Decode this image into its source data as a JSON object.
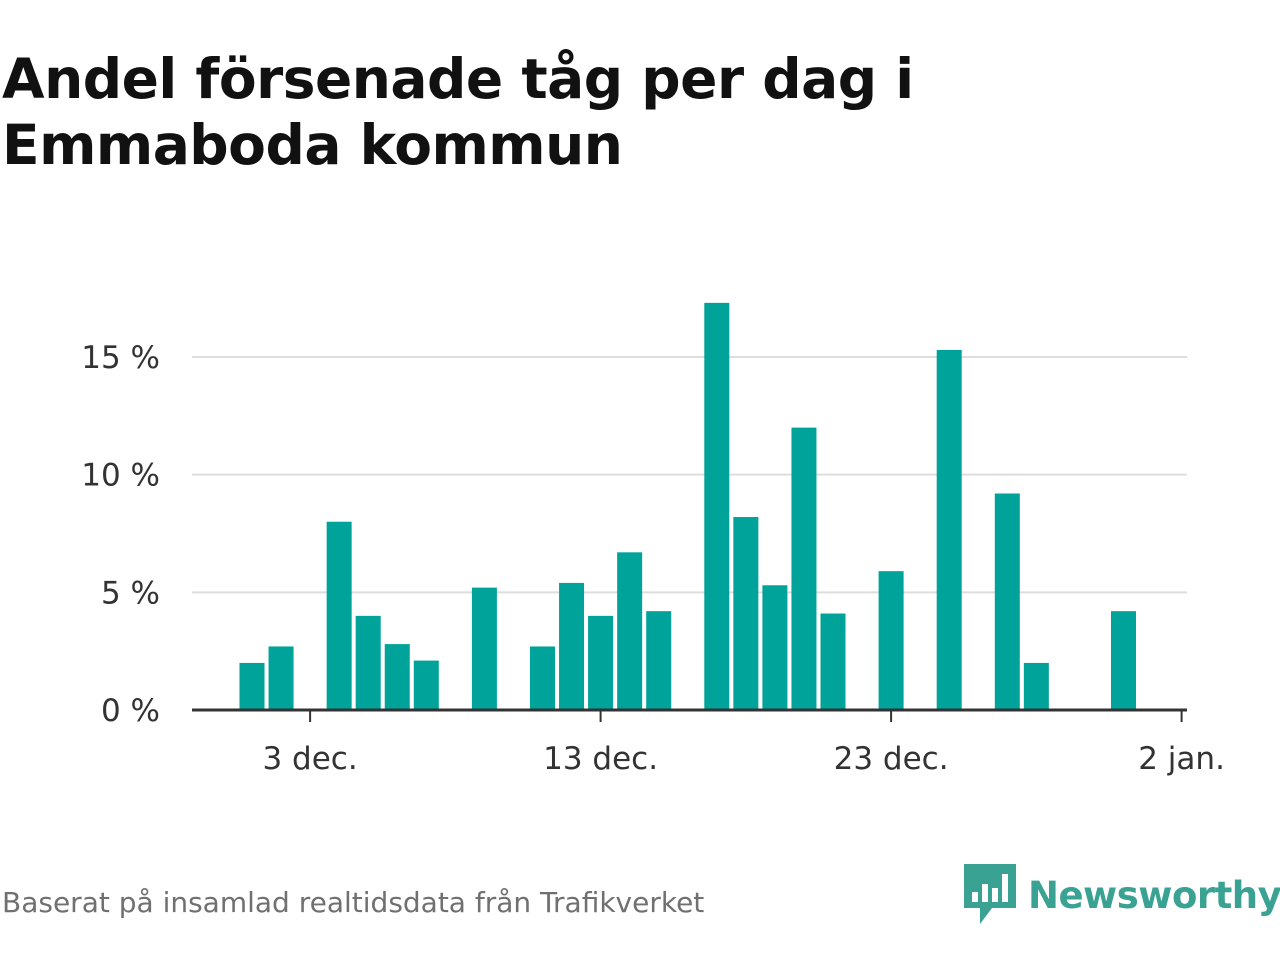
{
  "title_line1": "Andel försenade tåg per dag i",
  "title_line2": "Emmaboda kommun",
  "footer": {
    "source": "Baserat på insamlad realtidsdata från Trafikverket"
  },
  "brand": {
    "name": "Newsworthy",
    "color": "#3aa293",
    "icon": "newsworthy-logo-icon"
  },
  "colors": {
    "bar": "#00a39a",
    "grid": "#dddddd",
    "axis": "#333333"
  },
  "chart_data": {
    "type": "bar",
    "title": "Andel försenade tåg per dag i Emmaboda kommun",
    "x_unit": "date",
    "x": [
      "1 dec.",
      "2 dec.",
      "3 dec.",
      "4 dec.",
      "5 dec.",
      "6 dec.",
      "7 dec.",
      "8 dec.",
      "9 dec.",
      "10 dec.",
      "11 dec.",
      "12 dec.",
      "13 dec.",
      "14 dec.",
      "15 dec.",
      "16 dec.",
      "17 dec.",
      "18 dec.",
      "19 dec.",
      "20 dec.",
      "21 dec.",
      "22 dec.",
      "23 dec.",
      "24 dec.",
      "25 dec.",
      "26 dec.",
      "27 dec.",
      "28 dec.",
      "29 dec.",
      "30 dec.",
      "31 dec.",
      "1 jan."
    ],
    "values": [
      2.0,
      2.7,
      0,
      8.0,
      4.0,
      2.8,
      2.1,
      0,
      5.2,
      0,
      2.7,
      5.4,
      4.0,
      6.7,
      4.2,
      0,
      17.3,
      8.2,
      5.3,
      12.0,
      4.1,
      0,
      5.9,
      0,
      15.3,
      0,
      9.2,
      2.0,
      0,
      0,
      4.2,
      0
    ],
    "x_ticks": [
      "3 dec.",
      "13 dec.",
      "23 dec.",
      "2 jan."
    ],
    "y_ticks": [
      "0 %",
      "5 %",
      "10 %",
      "15 %"
    ],
    "y_tick_values": [
      0,
      5,
      10,
      15
    ],
    "ylim": [
      0,
      18
    ],
    "grid": true,
    "legend": "none"
  }
}
